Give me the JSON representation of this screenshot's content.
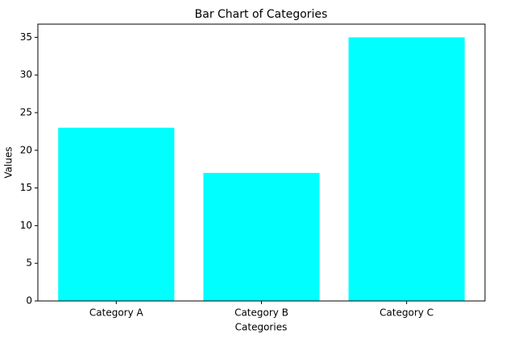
{
  "chart_data": {
    "type": "bar",
    "title": "Bar Chart of Categories",
    "x_label": "Categories",
    "y_label": "Values",
    "categories": [
      "Category A",
      "Category B",
      "Category C"
    ],
    "values": [
      23,
      17,
      35
    ],
    "color": "#00ffff",
    "ylim": [
      0,
      36.75
    ],
    "yticks": [
      0,
      5,
      10,
      15,
      20,
      25,
      30,
      35
    ],
    "grid": false
  }
}
